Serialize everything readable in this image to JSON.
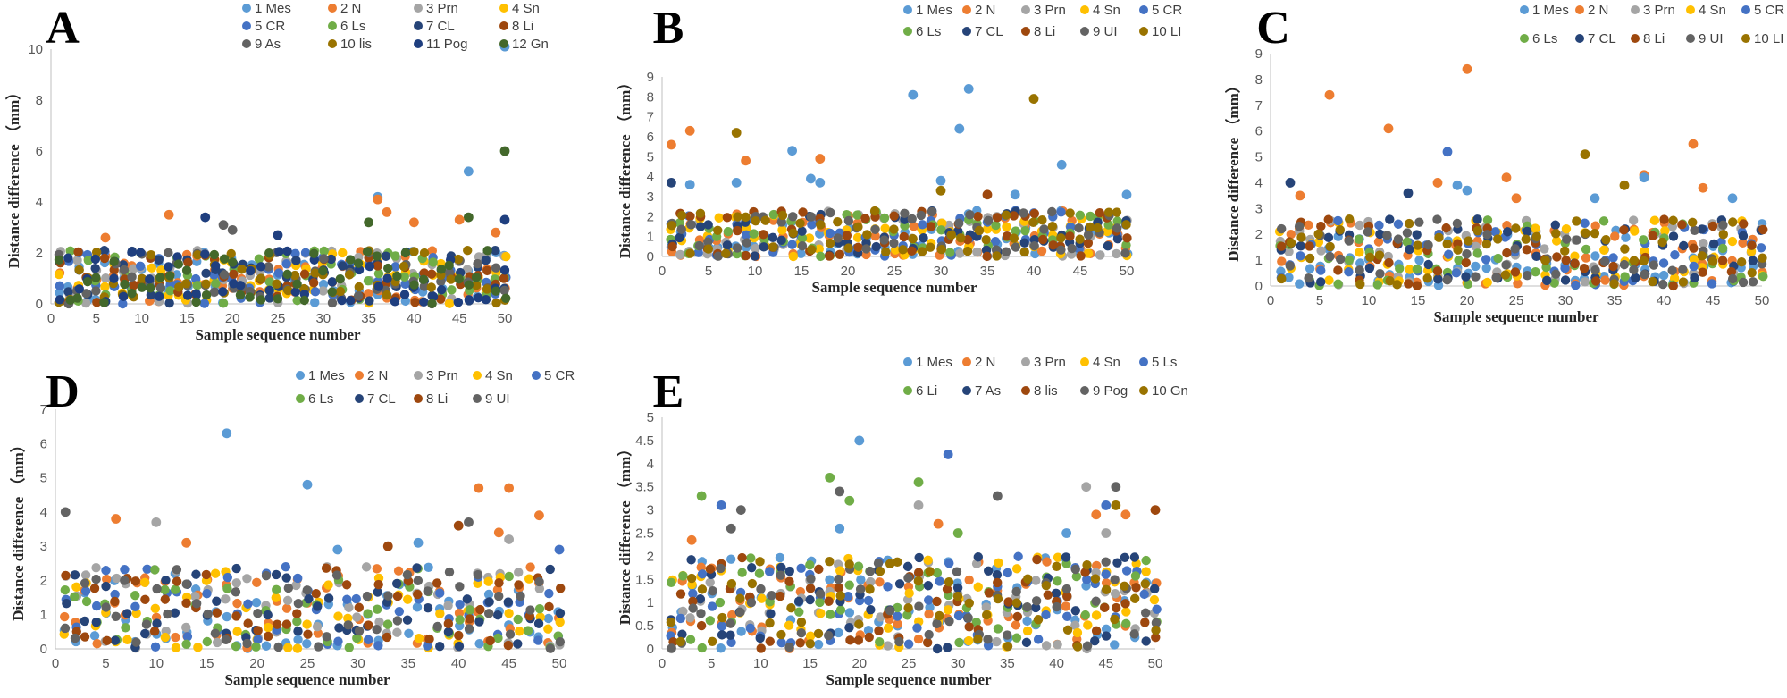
{
  "colors": {
    "Mes": "#5b9bd5",
    "N": "#ed7d31",
    "Prn": "#a5a5a5",
    "Sn": "#ffc000",
    "CR": "#4472c4",
    "Ls": "#70ad47",
    "CL": "#264478",
    "Li": "#9e480e",
    "As": "#636363",
    "lis": "#997300",
    "Pog": "#1f3f7f",
    "Gn": "#43682b",
    "UI": "#636363",
    "LI": "#997300",
    "Gn10": "#997300"
  },
  "chart_data": [
    {
      "type": "scatter",
      "panel": "A",
      "xlabel": "Sample sequence number",
      "ylabel": "Distance difference （mm）",
      "xlim": [
        0,
        50
      ],
      "ylim": [
        0,
        10
      ],
      "xticks": [
        0,
        5,
        10,
        15,
        20,
        25,
        30,
        35,
        40,
        45,
        50
      ],
      "yticks": [
        0,
        2,
        4,
        6,
        8,
        10
      ],
      "legend": [
        {
          "label": "1 Mes",
          "key": "Mes"
        },
        {
          "label": "2 N",
          "key": "N"
        },
        {
          "label": "3 Prn",
          "key": "Prn"
        },
        {
          "label": "4 Sn",
          "key": "Sn"
        },
        {
          "label": "5 CR",
          "key": "CR"
        },
        {
          "label": "6 Ls",
          "key": "Ls"
        },
        {
          "label": "7 CL",
          "key": "CL"
        },
        {
          "label": "8 Li",
          "key": "Li"
        },
        {
          "label": "9 As",
          "key": "As"
        },
        {
          "label": "10 lis",
          "key": "lis"
        },
        {
          "label": "11 Pog",
          "key": "Pog"
        },
        {
          "label": "12 Gn",
          "key": "Gn"
        }
      ],
      "seed": 11,
      "base_max": 2.1,
      "n_series": 12,
      "outliers": [
        {
          "key": "Mes",
          "x": 50,
          "y": 10.1
        },
        {
          "key": "Gn",
          "x": 50,
          "y": 6.0
        },
        {
          "key": "Mes",
          "x": 46,
          "y": 5.2
        },
        {
          "key": "Mes",
          "x": 36,
          "y": 4.2
        },
        {
          "key": "N",
          "x": 36,
          "y": 4.1
        },
        {
          "key": "N",
          "x": 37,
          "y": 3.6
        },
        {
          "key": "N",
          "x": 13,
          "y": 3.5
        },
        {
          "key": "Pog",
          "x": 17,
          "y": 3.4
        },
        {
          "key": "Gn",
          "x": 46,
          "y": 3.4
        },
        {
          "key": "N",
          "x": 45,
          "y": 3.3
        },
        {
          "key": "Pog",
          "x": 50,
          "y": 3.3
        },
        {
          "key": "N",
          "x": 40,
          "y": 3.2
        },
        {
          "key": "As",
          "x": 19,
          "y": 3.1
        },
        {
          "key": "Gn",
          "x": 35,
          "y": 3.2
        },
        {
          "key": "N",
          "x": 49,
          "y": 2.8
        },
        {
          "key": "Pog",
          "x": 25,
          "y": 2.7
        },
        {
          "key": "As",
          "x": 20,
          "y": 2.9
        },
        {
          "key": "N",
          "x": 6,
          "y": 2.6
        }
      ]
    },
    {
      "type": "scatter",
      "panel": "B",
      "xlabel": "Sample sequence number",
      "ylabel": "Distance difference （mm）",
      "xlim": [
        0,
        50
      ],
      "ylim": [
        0,
        9
      ],
      "xticks": [
        0,
        5,
        10,
        15,
        20,
        25,
        30,
        35,
        40,
        45,
        50
      ],
      "yticks": [
        0,
        1,
        2,
        3,
        4,
        5,
        6,
        7,
        8,
        9
      ],
      "legend": [
        {
          "label": "1 Mes",
          "key": "Mes"
        },
        {
          "label": "2 N",
          "key": "N"
        },
        {
          "label": "3 Prn",
          "key": "Prn"
        },
        {
          "label": "4 Sn",
          "key": "Sn"
        },
        {
          "label": "5 CR",
          "key": "CR"
        },
        {
          "label": "6 Ls",
          "key": "Ls"
        },
        {
          "label": "7 CL",
          "key": "CL"
        },
        {
          "label": "8 Li",
          "key": "Li"
        },
        {
          "label": "9 UI",
          "key": "UI"
        },
        {
          "label": "10 LI",
          "key": "LI"
        }
      ],
      "seed": 23,
      "base_max": 2.3,
      "n_series": 10,
      "outliers": [
        {
          "key": "Mes",
          "x": 33,
          "y": 8.4
        },
        {
          "key": "Mes",
          "x": 27,
          "y": 8.1
        },
        {
          "key": "LI",
          "x": 40,
          "y": 7.9
        },
        {
          "key": "Mes",
          "x": 32,
          "y": 6.4
        },
        {
          "key": "N",
          "x": 3,
          "y": 6.3
        },
        {
          "key": "LI",
          "x": 8,
          "y": 6.2
        },
        {
          "key": "N",
          "x": 1,
          "y": 5.6
        },
        {
          "key": "Mes",
          "x": 14,
          "y": 5.3
        },
        {
          "key": "N",
          "x": 9,
          "y": 4.8
        },
        {
          "key": "N",
          "x": 17,
          "y": 4.9
        },
        {
          "key": "Mes",
          "x": 43,
          "y": 4.6
        },
        {
          "key": "Mes",
          "x": 16,
          "y": 3.9
        },
        {
          "key": "Mes",
          "x": 30,
          "y": 3.8
        },
        {
          "key": "CL",
          "x": 1,
          "y": 3.7
        },
        {
          "key": "Mes",
          "x": 3,
          "y": 3.6
        },
        {
          "key": "Mes",
          "x": 8,
          "y": 3.7
        },
        {
          "key": "Mes",
          "x": 17,
          "y": 3.7
        },
        {
          "key": "LI",
          "x": 30,
          "y": 3.3
        },
        {
          "key": "Mes",
          "x": 50,
          "y": 3.1
        },
        {
          "key": "Li",
          "x": 35,
          "y": 3.1
        },
        {
          "key": "Mes",
          "x": 38,
          "y": 3.1
        }
      ]
    },
    {
      "type": "scatter",
      "panel": "C",
      "xlabel": "Sample sequence number",
      "ylabel": "Distance difference （mm）",
      "xlim": [
        0,
        50
      ],
      "ylim": [
        0,
        9
      ],
      "xticks": [
        0,
        5,
        10,
        15,
        20,
        25,
        30,
        35,
        40,
        45,
        50
      ],
      "yticks": [
        0,
        1,
        2,
        3,
        4,
        5,
        6,
        7,
        8,
        9
      ],
      "legend": [
        {
          "label": "1 Mes",
          "key": "Mes"
        },
        {
          "label": "2 N",
          "key": "N"
        },
        {
          "label": "3 Prn",
          "key": "Prn"
        },
        {
          "label": "4 Sn",
          "key": "Sn"
        },
        {
          "label": "5 CR",
          "key": "CR"
        },
        {
          "label": "6 Ls",
          "key": "Ls"
        },
        {
          "label": "7 CL",
          "key": "CL"
        },
        {
          "label": "8 Li",
          "key": "Li"
        },
        {
          "label": "9 UI",
          "key": "UI"
        },
        {
          "label": "10 LI",
          "key": "LI"
        }
      ],
      "seed": 37,
      "base_max": 2.6,
      "n_series": 10,
      "outliers": [
        {
          "key": "N",
          "x": 20,
          "y": 8.4
        },
        {
          "key": "N",
          "x": 6,
          "y": 7.4
        },
        {
          "key": "N",
          "x": 12,
          "y": 6.1
        },
        {
          "key": "N",
          "x": 43,
          "y": 5.5
        },
        {
          "key": "CR",
          "x": 18,
          "y": 5.2
        },
        {
          "key": "LI",
          "x": 32,
          "y": 5.1
        },
        {
          "key": "N",
          "x": 38,
          "y": 4.3
        },
        {
          "key": "N",
          "x": 24,
          "y": 4.2
        },
        {
          "key": "Mes",
          "x": 38,
          "y": 4.2
        },
        {
          "key": "CL",
          "x": 2,
          "y": 4.0
        },
        {
          "key": "N",
          "x": 17,
          "y": 4.0
        },
        {
          "key": "LI",
          "x": 36,
          "y": 3.9
        },
        {
          "key": "Mes",
          "x": 19,
          "y": 3.9
        },
        {
          "key": "N",
          "x": 44,
          "y": 3.8
        },
        {
          "key": "Mes",
          "x": 20,
          "y": 3.7
        },
        {
          "key": "CL",
          "x": 14,
          "y": 3.6
        },
        {
          "key": "N",
          "x": 3,
          "y": 3.5
        },
        {
          "key": "Mes",
          "x": 33,
          "y": 3.4
        },
        {
          "key": "Mes",
          "x": 47,
          "y": 3.4
        },
        {
          "key": "N",
          "x": 25,
          "y": 3.4
        }
      ]
    },
    {
      "type": "scatter",
      "panel": "D",
      "xlabel": "Sample sequence number",
      "ylabel": "Distance difference （mm）",
      "xlim": [
        0,
        50
      ],
      "ylim": [
        0,
        7
      ],
      "xticks": [
        0,
        5,
        10,
        15,
        20,
        25,
        30,
        35,
        40,
        45,
        50
      ],
      "yticks": [
        0,
        1,
        2,
        3,
        4,
        5,
        6,
        7
      ],
      "legend": [
        {
          "label": "1 Mes",
          "key": "Mes"
        },
        {
          "label": "2 N",
          "key": "N"
        },
        {
          "label": "3 Prn",
          "key": "Prn"
        },
        {
          "label": "4 Sn",
          "key": "Sn"
        },
        {
          "label": "5 CR",
          "key": "CR"
        },
        {
          "label": "6 Ls",
          "key": "Ls"
        },
        {
          "label": "7 CL",
          "key": "CL"
        },
        {
          "label": "8 Li",
          "key": "Li"
        },
        {
          "label": "9 UI",
          "key": "UI"
        }
      ],
      "seed": 53,
      "base_max": 2.4,
      "n_series": 9,
      "outliers": [
        {
          "key": "Mes",
          "x": 17,
          "y": 6.3
        },
        {
          "key": "Mes",
          "x": 25,
          "y": 4.8
        },
        {
          "key": "N",
          "x": 42,
          "y": 4.7
        },
        {
          "key": "N",
          "x": 45,
          "y": 4.7
        },
        {
          "key": "UI",
          "x": 1,
          "y": 4.0
        },
        {
          "key": "N",
          "x": 48,
          "y": 3.9
        },
        {
          "key": "N",
          "x": 6,
          "y": 3.8
        },
        {
          "key": "Prn",
          "x": 10,
          "y": 3.7
        },
        {
          "key": "UI",
          "x": 41,
          "y": 3.7
        },
        {
          "key": "Li",
          "x": 40,
          "y": 3.6
        },
        {
          "key": "N",
          "x": 44,
          "y": 3.4
        },
        {
          "key": "Prn",
          "x": 45,
          "y": 3.2
        },
        {
          "key": "Mes",
          "x": 36,
          "y": 3.1
        },
        {
          "key": "N",
          "x": 13,
          "y": 3.1
        },
        {
          "key": "Li",
          "x": 33,
          "y": 3.0
        },
        {
          "key": "Mes",
          "x": 28,
          "y": 2.9
        },
        {
          "key": "CR",
          "x": 50,
          "y": 2.9
        }
      ]
    },
    {
      "type": "scatter",
      "panel": "E",
      "xlabel": "Sample sequence number",
      "ylabel": "Distance difference （mm）",
      "xlim": [
        0,
        50
      ],
      "ylim": [
        0,
        5
      ],
      "xticks": [
        0,
        5,
        10,
        15,
        20,
        25,
        30,
        35,
        40,
        45,
        50
      ],
      "yticks": [
        0,
        0.5,
        1,
        1.5,
        2,
        2.5,
        3,
        3.5,
        4,
        4.5,
        5
      ],
      "legend": [
        {
          "label": "1 Mes",
          "key": "Mes"
        },
        {
          "label": "2 N",
          "key": "N"
        },
        {
          "label": "3 Prn",
          "key": "Prn"
        },
        {
          "label": "4 Sn",
          "key": "Sn"
        },
        {
          "label": "5 Ls",
          "key": "CR"
        },
        {
          "label": "6 Li",
          "key": "Ls"
        },
        {
          "label": "7 As",
          "key": "CL"
        },
        {
          "label": "8 lis",
          "key": "Li"
        },
        {
          "label": "9 Pog",
          "key": "As"
        },
        {
          "label": "10 Gn",
          "key": "Gn10"
        }
      ],
      "seed": 71,
      "base_max": 2.0,
      "n_series": 10,
      "outliers": [
        {
          "key": "Mes",
          "x": 20,
          "y": 4.5
        },
        {
          "key": "CR",
          "x": 29,
          "y": 4.2
        },
        {
          "key": "Ls",
          "x": 17,
          "y": 3.7
        },
        {
          "key": "Ls",
          "x": 26,
          "y": 3.6
        },
        {
          "key": "As",
          "x": 46,
          "y": 3.5
        },
        {
          "key": "Prn",
          "x": 43,
          "y": 3.5
        },
        {
          "key": "As",
          "x": 18,
          "y": 3.4
        },
        {
          "key": "Ls",
          "x": 4,
          "y": 3.3
        },
        {
          "key": "As",
          "x": 34,
          "y": 3.3
        },
        {
          "key": "Ls",
          "x": 19,
          "y": 3.2
        },
        {
          "key": "Prn",
          "x": 26,
          "y": 3.1
        },
        {
          "key": "CR",
          "x": 6,
          "y": 3.1
        },
        {
          "key": "CR",
          "x": 45,
          "y": 3.1
        },
        {
          "key": "As",
          "x": 8,
          "y": 3.0
        },
        {
          "key": "Li",
          "x": 50,
          "y": 3.0
        },
        {
          "key": "N",
          "x": 44,
          "y": 2.9
        },
        {
          "key": "N",
          "x": 47,
          "y": 2.9
        },
        {
          "key": "Gn10",
          "x": 46,
          "y": 3.1
        },
        {
          "key": "N",
          "x": 28,
          "y": 2.7
        },
        {
          "key": "As",
          "x": 7,
          "y": 2.6
        },
        {
          "key": "Mes",
          "x": 18,
          "y": 2.6
        },
        {
          "key": "Prn",
          "x": 45,
          "y": 2.5
        },
        {
          "key": "Mes",
          "x": 41,
          "y": 2.5
        },
        {
          "key": "Ls",
          "x": 30,
          "y": 2.5
        },
        {
          "key": "N",
          "x": 3,
          "y": 2.35
        }
      ]
    }
  ]
}
